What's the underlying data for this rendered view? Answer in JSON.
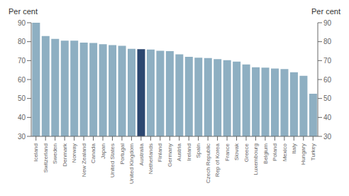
{
  "chart_data": {
    "type": "bar",
    "categories": [
      "Iceland",
      "Switzerland",
      "Sweden",
      "Denmark",
      "Norway",
      "New Zealand",
      "Canada",
      "Japan",
      "United States",
      "Portugal",
      "United Kingdom",
      "Australia",
      "Netherlands",
      "Finland",
      "Germany",
      "Austria",
      "Ireland",
      "Spain",
      "Czech Republic",
      "Rep of Korea",
      "France",
      "Slovak",
      "Greece",
      "Luxembourg",
      "Belgium",
      "Poland",
      "Mexico",
      "Italy",
      "Hungary",
      "Turkey"
    ],
    "values": [
      90.0,
      83.0,
      81.5,
      80.5,
      80.5,
      79.5,
      79.3,
      78.7,
      78.2,
      77.8,
      76.2,
      76.0,
      75.8,
      75.2,
      75.0,
      73.3,
      72.0,
      71.5,
      71.3,
      70.8,
      70.2,
      69.5,
      68.0,
      66.5,
      66.3,
      65.8,
      65.5,
      63.8,
      62.0,
      52.5
    ],
    "colors": [
      "#8eafc2",
      "#8eafc2",
      "#8eafc2",
      "#8eafc2",
      "#8eafc2",
      "#8eafc2",
      "#8eafc2",
      "#8eafc2",
      "#8eafc2",
      "#8eafc2",
      "#8eafc2",
      "#2c4770",
      "#8eafc2",
      "#8eafc2",
      "#8eafc2",
      "#8eafc2",
      "#8eafc2",
      "#8eafc2",
      "#8eafc2",
      "#8eafc2",
      "#8eafc2",
      "#8eafc2",
      "#8eafc2",
      "#8eafc2",
      "#8eafc2",
      "#8eafc2",
      "#8eafc2",
      "#8eafc2",
      "#8eafc2",
      "#8eafc2"
    ],
    "ylabel": "Per cent",
    "y2label": "Per cent",
    "ylim": [
      30,
      90
    ],
    "yticks": [
      30,
      40,
      50,
      60,
      70,
      80,
      90
    ],
    "y2lim": [
      30,
      90
    ],
    "y2ticks": [
      30,
      40,
      50,
      60,
      70,
      80,
      90
    ],
    "grid": false
  }
}
